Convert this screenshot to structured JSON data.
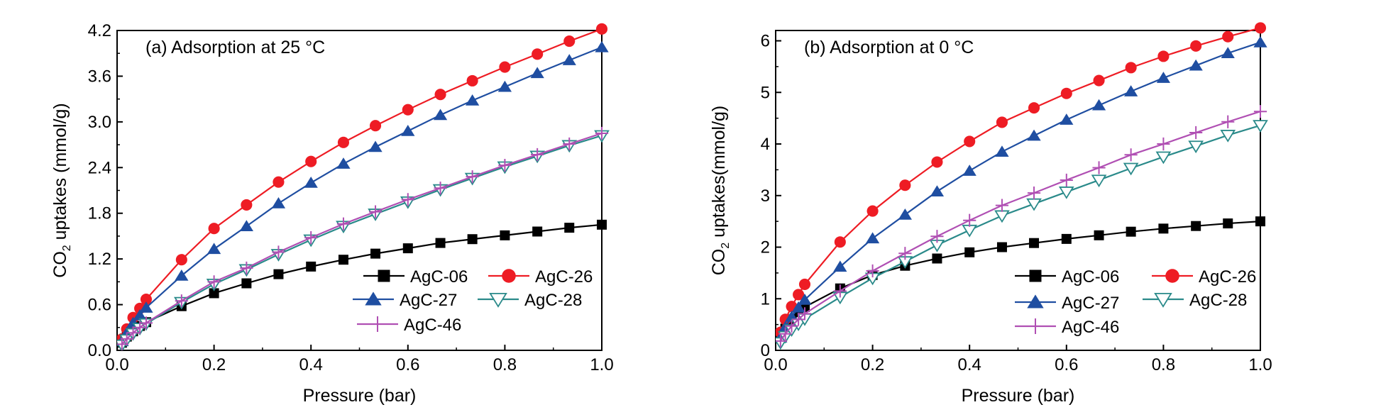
{
  "chart_data": [
    {
      "type": "line",
      "title": "(a)  Adsorption at 25 °C",
      "xlabel": "Pressure (bar)",
      "ylabel": "CO2 uptakes (mmol/g)",
      "ylabel_main": "CO",
      "ylabel_sub": "2",
      "ylabel_rest": " uptakes (mmol/g)",
      "xlim": [
        0,
        1.0
      ],
      "ylim": [
        0,
        4.2
      ],
      "xticks": [
        0.0,
        0.2,
        0.4,
        0.6,
        0.8,
        1.0
      ],
      "yticks": [
        0.0,
        0.6,
        1.2,
        1.8,
        2.4,
        3.0,
        3.6,
        4.2
      ],
      "xtick_labels": [
        "0.0",
        "0.2",
        "0.4",
        "0.6",
        "0.8",
        "1.0"
      ],
      "ytick_labels": [
        "0.0",
        "0.6",
        "1.2",
        "1.8",
        "2.4",
        "3.0",
        "3.6",
        "4.2"
      ],
      "grid": false,
      "legend_position": "bottom-right",
      "series": [
        {
          "name": "AgC-06",
          "color": "#000000",
          "marker": "square",
          "x": [
            0.01,
            0.02,
            0.033,
            0.047,
            0.06,
            0.133,
            0.2,
            0.267,
            0.333,
            0.4,
            0.467,
            0.533,
            0.6,
            0.667,
            0.733,
            0.8,
            0.867,
            0.933,
            1.0
          ],
          "y": [
            0.1,
            0.18,
            0.25,
            0.32,
            0.37,
            0.58,
            0.75,
            0.88,
            1.0,
            1.1,
            1.19,
            1.27,
            1.34,
            1.41,
            1.46,
            1.51,
            1.56,
            1.61,
            1.65
          ]
        },
        {
          "name": "AgC-26",
          "color": "#ee1c24",
          "marker": "circle",
          "x": [
            0.01,
            0.02,
            0.033,
            0.047,
            0.06,
            0.133,
            0.2,
            0.267,
            0.333,
            0.4,
            0.467,
            0.533,
            0.6,
            0.667,
            0.733,
            0.8,
            0.867,
            0.933,
            1.0
          ],
          "y": [
            0.15,
            0.28,
            0.43,
            0.55,
            0.67,
            1.19,
            1.6,
            1.91,
            2.21,
            2.48,
            2.73,
            2.95,
            3.16,
            3.36,
            3.54,
            3.72,
            3.89,
            4.06,
            4.22
          ]
        },
        {
          "name": "AgC-27",
          "color": "#1f4ea1",
          "marker": "triangle",
          "x": [
            0.01,
            0.02,
            0.033,
            0.047,
            0.06,
            0.133,
            0.2,
            0.267,
            0.333,
            0.4,
            0.467,
            0.533,
            0.6,
            0.667,
            0.733,
            0.8,
            0.867,
            0.933,
            1.0
          ],
          "y": [
            0.12,
            0.23,
            0.36,
            0.46,
            0.56,
            0.98,
            1.33,
            1.63,
            1.93,
            2.2,
            2.45,
            2.67,
            2.88,
            3.09,
            3.28,
            3.46,
            3.64,
            3.81,
            3.98
          ]
        },
        {
          "name": "AgC-28",
          "color": "#2a8a8a",
          "marker": "triangle-down-open",
          "x": [
            0.01,
            0.02,
            0.033,
            0.047,
            0.06,
            0.133,
            0.2,
            0.267,
            0.333,
            0.4,
            0.467,
            0.533,
            0.6,
            0.667,
            0.733,
            0.8,
            0.867,
            0.933,
            1.0
          ],
          "y": [
            0.07,
            0.14,
            0.22,
            0.29,
            0.35,
            0.63,
            0.87,
            1.06,
            1.26,
            1.45,
            1.63,
            1.79,
            1.95,
            2.11,
            2.26,
            2.41,
            2.55,
            2.69,
            2.82
          ]
        },
        {
          "name": "AgC-46",
          "color": "#b04fb3",
          "marker": "plus",
          "x": [
            0.01,
            0.02,
            0.033,
            0.047,
            0.06,
            0.133,
            0.2,
            0.267,
            0.333,
            0.4,
            0.467,
            0.533,
            0.6,
            0.667,
            0.733,
            0.8,
            0.867,
            0.933,
            1.0
          ],
          "y": [
            0.08,
            0.15,
            0.23,
            0.3,
            0.36,
            0.65,
            0.9,
            1.08,
            1.29,
            1.48,
            1.66,
            1.82,
            1.98,
            2.13,
            2.28,
            2.43,
            2.57,
            2.71,
            2.85
          ]
        }
      ]
    },
    {
      "type": "line",
      "title": "(b)  Adsorption at 0 °C",
      "xlabel": "Pressure (bar)",
      "ylabel": "CO2 uptakes(mmol/g)",
      "ylabel_main": "CO",
      "ylabel_sub": "2",
      "ylabel_rest": " uptakes(mmol/g)",
      "xlim": [
        0,
        1.0
      ],
      "ylim": [
        0,
        6.2
      ],
      "xticks": [
        0.0,
        0.2,
        0.4,
        0.6,
        0.8,
        1.0
      ],
      "yticks": [
        0,
        1,
        2,
        3,
        4,
        5,
        6
      ],
      "xtick_labels": [
        "0.0",
        "0.2",
        "0.4",
        "0.6",
        "0.8",
        "1.0"
      ],
      "ytick_labels": [
        "0",
        "1",
        "2",
        "3",
        "4",
        "5",
        "6"
      ],
      "grid": false,
      "legend_position": "bottom-right",
      "series": [
        {
          "name": "AgC-06",
          "color": "#000000",
          "marker": "square",
          "x": [
            0.01,
            0.02,
            0.033,
            0.047,
            0.06,
            0.133,
            0.2,
            0.267,
            0.333,
            0.4,
            0.467,
            0.533,
            0.6,
            0.667,
            0.733,
            0.8,
            0.867,
            0.933,
            1.0
          ],
          "y": [
            0.25,
            0.42,
            0.6,
            0.74,
            0.84,
            1.2,
            1.46,
            1.64,
            1.78,
            1.9,
            2.0,
            2.08,
            2.16,
            2.23,
            2.3,
            2.36,
            2.41,
            2.46,
            2.5
          ]
        },
        {
          "name": "AgC-26",
          "color": "#ee1c24",
          "marker": "circle",
          "x": [
            0.01,
            0.02,
            0.033,
            0.047,
            0.06,
            0.133,
            0.2,
            0.267,
            0.333,
            0.4,
            0.467,
            0.533,
            0.6,
            0.667,
            0.733,
            0.8,
            0.867,
            0.933,
            1.0
          ],
          "y": [
            0.35,
            0.6,
            0.85,
            1.08,
            1.28,
            2.1,
            2.7,
            3.2,
            3.65,
            4.05,
            4.42,
            4.7,
            4.98,
            5.23,
            5.48,
            5.7,
            5.9,
            6.08,
            6.25
          ]
        },
        {
          "name": "AgC-27",
          "color": "#1f4ea1",
          "marker": "triangle",
          "x": [
            0.01,
            0.02,
            0.033,
            0.047,
            0.06,
            0.133,
            0.2,
            0.267,
            0.333,
            0.4,
            0.467,
            0.533,
            0.6,
            0.667,
            0.733,
            0.8,
            0.867,
            0.933,
            1.0
          ],
          "y": [
            0.25,
            0.45,
            0.65,
            0.83,
            0.98,
            1.62,
            2.17,
            2.63,
            3.08,
            3.48,
            3.85,
            4.16,
            4.47,
            4.75,
            5.02,
            5.28,
            5.52,
            5.76,
            5.97
          ]
        },
        {
          "name": "AgC-28",
          "color": "#2a8a8a",
          "marker": "triangle-down-open",
          "x": [
            0.01,
            0.02,
            0.033,
            0.047,
            0.06,
            0.133,
            0.2,
            0.267,
            0.333,
            0.4,
            0.467,
            0.533,
            0.6,
            0.667,
            0.733,
            0.8,
            0.867,
            0.933,
            1.0
          ],
          "y": [
            0.15,
            0.27,
            0.4,
            0.51,
            0.61,
            1.03,
            1.4,
            1.72,
            2.04,
            2.33,
            2.61,
            2.84,
            3.07,
            3.3,
            3.53,
            3.75,
            3.96,
            4.17,
            4.36
          ]
        },
        {
          "name": "AgC-46",
          "color": "#b04fb3",
          "marker": "plus",
          "x": [
            0.01,
            0.02,
            0.033,
            0.047,
            0.06,
            0.133,
            0.2,
            0.267,
            0.333,
            0.4,
            0.467,
            0.533,
            0.6,
            0.667,
            0.733,
            0.8,
            0.867,
            0.933,
            1.0
          ],
          "y": [
            0.18,
            0.32,
            0.47,
            0.6,
            0.71,
            1.15,
            1.54,
            1.88,
            2.21,
            2.52,
            2.81,
            3.05,
            3.3,
            3.54,
            3.79,
            4.0,
            4.22,
            4.43,
            4.63
          ]
        }
      ],
      "legend_order": [
        "AgC-06",
        "AgC-26",
        "AgC-27",
        "AgC-28",
        "AgC-46"
      ]
    }
  ]
}
